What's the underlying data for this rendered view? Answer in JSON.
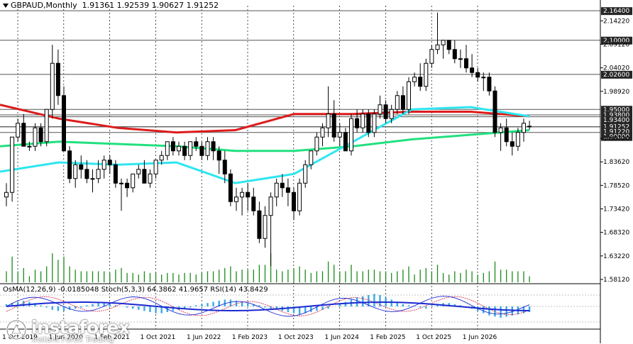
{
  "header": {
    "symbol": "GBPAUD,Monthly",
    "open": "1.91361",
    "high": "1.92539",
    "low": "1.90627",
    "close": "1.91252"
  },
  "indicator_header": "OsMA(12,26,9) -0.0185048  Stoch(5,3,3) 64.3862 41.9657  RSI(14) 43.8429",
  "logo": {
    "name": "instaforex",
    "tagline": "Instant Forex Trading"
  },
  "colors": {
    "bull": "#ffffff",
    "bear": "#000000",
    "ma_red": "#dd1c1c",
    "ma_green": "#22e07f",
    "ma_cyan": "#2ee6f0",
    "volume": "#1a8a1a",
    "osma": "#3aa8e6",
    "macd_line": "#1c2ad2",
    "stoch_main": "#1c2ad2",
    "stoch_signal": "#cc2244",
    "level_highlight": "#262626"
  },
  "chart_data": {
    "type": "candlestick",
    "title": "GBPAUD,Monthly",
    "price_axis": {
      "labels": [
        "2.14220",
        "2.09120",
        "2.04020",
        "1.98920",
        "1.88720",
        "1.83620",
        "1.78520",
        "1.73420",
        "1.68320",
        "1.63220",
        "1.58120"
      ],
      "ylim": [
        1.575,
        2.175
      ]
    },
    "highlighted_levels": [
      "2.16400",
      "2.10000",
      "2.02600",
      "1.95000",
      "1.93800",
      "1.93400",
      "1.91252",
      "1.91220",
      "1.90000"
    ],
    "time_axis": [
      "1 Oct 2019",
      "1 Jun 2020",
      "1 Feb 2021",
      "1 Oct 2021",
      "1 Jun 2022",
      "1 Feb 2023",
      "1 Oct 2023",
      "1 Jun 2024",
      "1 Feb 2025",
      "1 Oct 2025",
      "1 Jun 2026"
    ],
    "candles": [
      [
        1.76,
        1.79,
        1.74,
        1.77
      ],
      [
        1.77,
        1.89,
        1.75,
        1.89
      ],
      [
        1.89,
        1.93,
        1.88,
        1.92
      ],
      [
        1.92,
        1.94,
        1.87,
        1.87
      ],
      [
        1.87,
        1.88,
        1.86,
        1.87
      ],
      [
        1.87,
        1.92,
        1.86,
        1.91
      ],
      [
        1.91,
        1.92,
        1.87,
        1.88
      ],
      [
        1.88,
        1.95,
        1.87,
        1.95
      ],
      [
        1.95,
        2.09,
        1.93,
        2.05
      ],
      [
        2.05,
        2.08,
        1.96,
        1.98
      ],
      [
        1.98,
        2.0,
        1.86,
        1.86
      ],
      [
        1.86,
        1.87,
        1.79,
        1.8
      ],
      [
        1.8,
        1.84,
        1.78,
        1.83
      ],
      [
        1.83,
        1.85,
        1.8,
        1.82
      ],
      [
        1.82,
        1.84,
        1.79,
        1.8
      ],
      [
        1.8,
        1.82,
        1.77,
        1.8
      ],
      [
        1.8,
        1.84,
        1.79,
        1.82
      ],
      [
        1.82,
        1.85,
        1.8,
        1.84
      ],
      [
        1.84,
        1.85,
        1.81,
        1.83
      ],
      [
        1.83,
        1.84,
        1.78,
        1.79
      ],
      [
        1.79,
        1.8,
        1.73,
        1.79
      ],
      [
        1.79,
        1.8,
        1.76,
        1.78
      ],
      [
        1.78,
        1.81,
        1.77,
        1.81
      ],
      [
        1.81,
        1.83,
        1.8,
        1.82
      ],
      [
        1.82,
        1.84,
        1.79,
        1.79
      ],
      [
        1.79,
        1.82,
        1.78,
        1.81
      ],
      [
        1.81,
        1.84,
        1.8,
        1.84
      ],
      [
        1.84,
        1.86,
        1.83,
        1.85
      ],
      [
        1.85,
        1.88,
        1.84,
        1.88
      ],
      [
        1.88,
        1.89,
        1.85,
        1.86
      ],
      [
        1.86,
        1.88,
        1.85,
        1.87
      ],
      [
        1.87,
        1.88,
        1.84,
        1.85
      ],
      [
        1.85,
        1.88,
        1.84,
        1.88
      ],
      [
        1.88,
        1.89,
        1.86,
        1.87
      ],
      [
        1.87,
        1.88,
        1.84,
        1.85
      ],
      [
        1.85,
        1.89,
        1.84,
        1.88
      ],
      [
        1.88,
        1.89,
        1.84,
        1.86
      ],
      [
        1.86,
        1.87,
        1.81,
        1.84
      ],
      [
        1.84,
        1.86,
        1.79,
        1.81
      ],
      [
        1.81,
        1.82,
        1.74,
        1.75
      ],
      [
        1.75,
        1.78,
        1.73,
        1.76
      ],
      [
        1.76,
        1.78,
        1.72,
        1.77
      ],
      [
        1.77,
        1.79,
        1.73,
        1.76
      ],
      [
        1.76,
        1.78,
        1.72,
        1.73
      ],
      [
        1.73,
        1.75,
        1.66,
        1.67
      ],
      [
        1.67,
        1.74,
        1.65,
        1.72
      ],
      [
        1.72,
        1.77,
        1.61,
        1.76
      ],
      [
        1.76,
        1.8,
        1.74,
        1.79
      ],
      [
        1.79,
        1.81,
        1.76,
        1.78
      ],
      [
        1.78,
        1.8,
        1.74,
        1.77
      ],
      [
        1.77,
        1.78,
        1.71,
        1.73
      ],
      [
        1.73,
        1.8,
        1.72,
        1.79
      ],
      [
        1.79,
        1.84,
        1.78,
        1.83
      ],
      [
        1.83,
        1.86,
        1.82,
        1.86
      ],
      [
        1.86,
        1.9,
        1.85,
        1.89
      ],
      [
        1.89,
        1.92,
        1.87,
        1.91
      ],
      [
        1.91,
        2.0,
        1.89,
        1.94
      ],
      [
        1.94,
        1.97,
        1.88,
        1.89
      ],
      [
        1.89,
        1.92,
        1.87,
        1.9
      ],
      [
        1.9,
        1.91,
        1.86,
        1.86
      ],
      [
        1.86,
        1.94,
        1.85,
        1.93
      ],
      [
        1.93,
        1.95,
        1.9,
        1.91
      ],
      [
        1.91,
        1.95,
        1.9,
        1.94
      ],
      [
        1.94,
        1.95,
        1.89,
        1.9
      ],
      [
        1.9,
        1.95,
        1.89,
        1.94
      ],
      [
        1.94,
        1.98,
        1.93,
        1.96
      ],
      [
        1.96,
        1.97,
        1.92,
        1.93
      ],
      [
        1.93,
        1.96,
        1.92,
        1.95
      ],
      [
        1.95,
        1.99,
        1.94,
        1.98
      ],
      [
        1.98,
        2.0,
        1.94,
        1.95
      ],
      [
        1.95,
        2.02,
        1.94,
        2.01
      ],
      [
        2.01,
        2.03,
        2.0,
        2.02
      ],
      [
        2.02,
        2.05,
        1.99,
        2.0
      ],
      [
        2.0,
        2.06,
        1.99,
        2.05
      ],
      [
        2.05,
        2.09,
        2.04,
        2.08
      ],
      [
        2.08,
        2.16,
        2.07,
        2.09
      ],
      [
        2.09,
        2.1,
        2.06,
        2.1
      ],
      [
        2.1,
        2.1,
        2.07,
        2.08
      ],
      [
        2.08,
        2.1,
        2.05,
        2.06
      ],
      [
        2.06,
        2.08,
        2.04,
        2.06
      ],
      [
        2.06,
        2.09,
        2.03,
        2.04
      ],
      [
        2.04,
        2.07,
        2.02,
        2.03
      ],
      [
        2.03,
        2.04,
        2.01,
        2.02
      ],
      [
        2.02,
        2.03,
        1.99,
        2.02
      ],
      [
        2.02,
        2.03,
        1.98,
        1.99
      ],
      [
        1.99,
        2.0,
        1.89,
        1.9
      ],
      [
        1.9,
        1.92,
        1.86,
        1.91
      ],
      [
        1.91,
        1.93,
        1.87,
        1.88
      ],
      [
        1.88,
        1.9,
        1.85,
        1.87
      ],
      [
        1.87,
        1.91,
        1.86,
        1.9
      ],
      [
        1.9,
        1.93,
        1.88,
        1.92
      ],
      [
        1.91361,
        1.92539,
        1.90627,
        1.91252
      ]
    ],
    "moving_averages": [
      {
        "color": "#dd1c1c",
        "values": [
          1.96,
          1.93,
          1.91,
          1.9,
          1.905,
          1.94,
          1.94,
          1.945,
          1.945,
          1.935
        ]
      },
      {
        "color": "#22e07f",
        "values": [
          1.87,
          1.88,
          1.875,
          1.87,
          1.86,
          1.86,
          1.87,
          1.885,
          1.895,
          1.905
        ]
      },
      {
        "color": "#2ee6f0",
        "values": [
          1.815,
          1.835,
          1.83,
          1.835,
          1.79,
          1.81,
          1.88,
          1.95,
          1.955,
          1.935
        ]
      }
    ]
  }
}
